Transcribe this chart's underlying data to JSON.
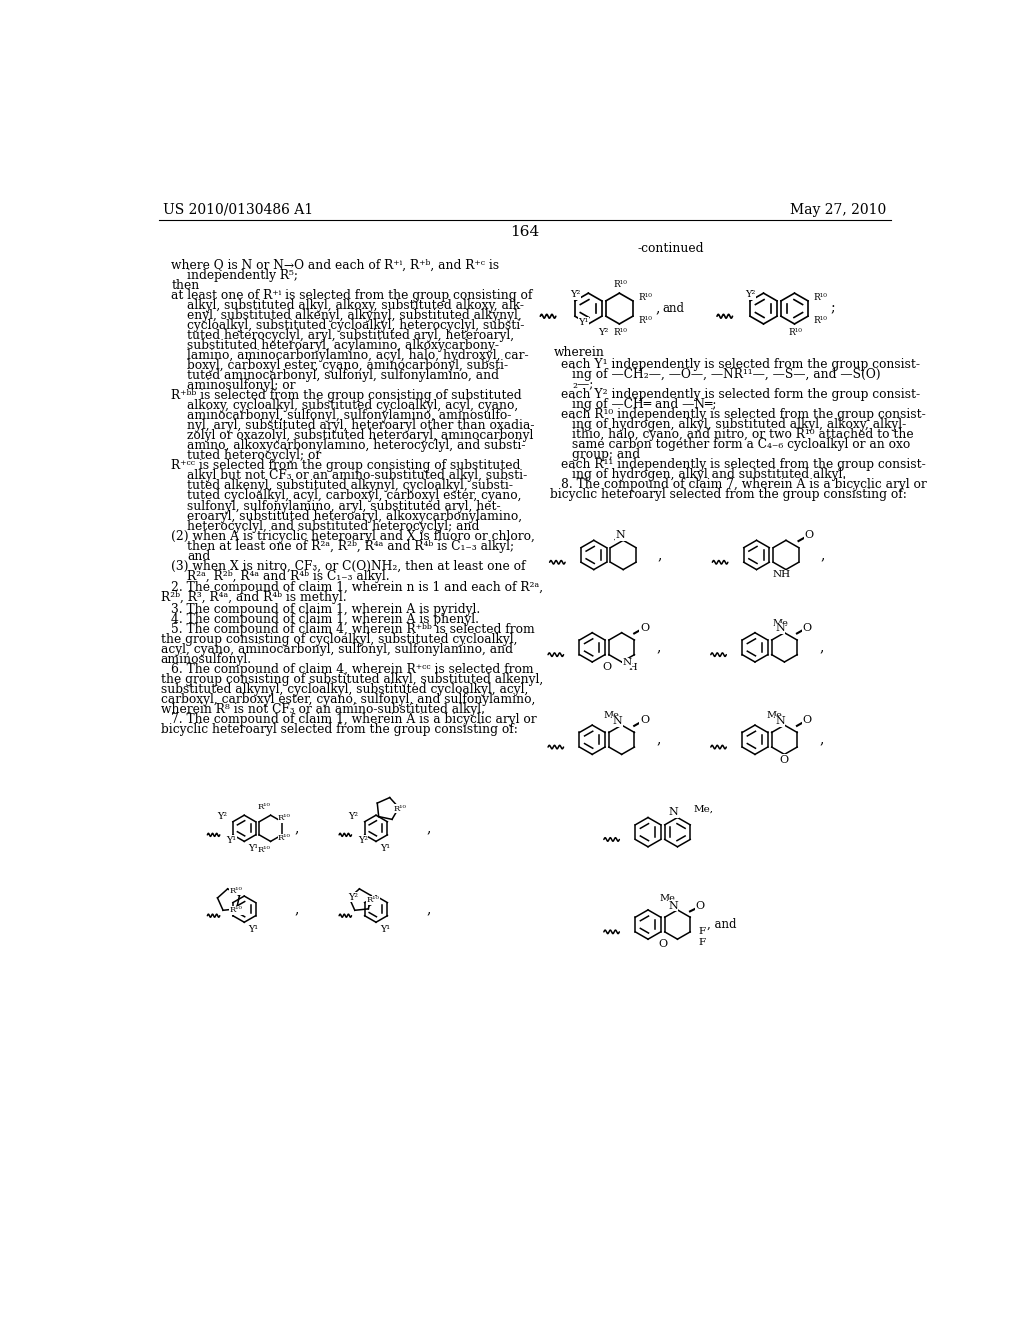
{
  "background_color": "#ffffff",
  "header_left": "US 2010/0130486 A1",
  "header_right": "May 27, 2010",
  "page_number": "164"
}
